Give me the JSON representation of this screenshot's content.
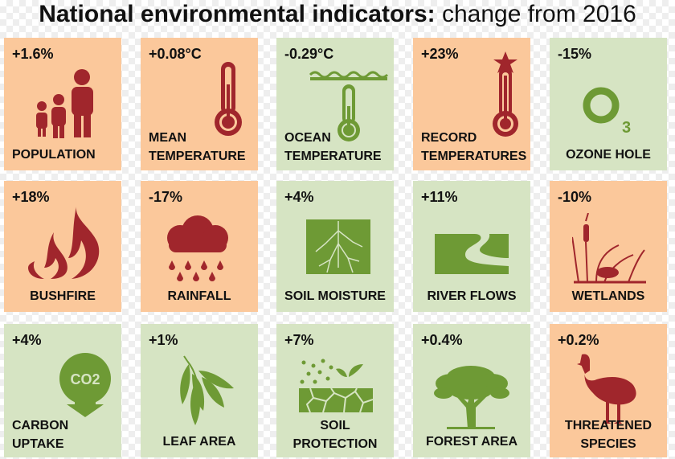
{
  "header": {
    "title_bold": "National environmental indicators:",
    "title_rest": " change from 2016"
  },
  "colors": {
    "orange_tile": "#fbc89b",
    "green_tile": "#d6e4c3",
    "red_icon": "#a0262c",
    "green_icon": "#6e9a35"
  },
  "tiles": [
    {
      "value": "+1.6%",
      "label": "POPULATION",
      "icon": "people-icon"
    },
    {
      "value": "+0.08°C",
      "label_line1": "MEAN",
      "label_line2": "TEMPERATURE",
      "icon": "thermometer-icon"
    },
    {
      "value": "-0.29°C",
      "label_line1": "OCEAN",
      "label_line2": "TEMPERATURE",
      "icon": "ocean-thermometer-icon"
    },
    {
      "value": "+23%",
      "label_line1": "RECORD",
      "label_line2": "TEMPERATURES",
      "icon": "record-thermometer-icon"
    },
    {
      "value": "-15%",
      "label": "OZONE HOLE",
      "icon": "ozone-icon"
    },
    {
      "value": "+18%",
      "label": "BUSHFIRE",
      "icon": "fire-icon"
    },
    {
      "value": "-17%",
      "label": "RAINFALL",
      "icon": "rain-cloud-icon"
    },
    {
      "value": "+4%",
      "label": "SOIL MOISTURE",
      "icon": "soil-roots-icon"
    },
    {
      "value": "+11%",
      "label": "RIVER FLOWS",
      "icon": "river-icon"
    },
    {
      "value": "-10%",
      "label": "WETLANDS",
      "icon": "wetlands-icon"
    },
    {
      "value": "+4%",
      "label_line1": "CARBON",
      "label_line2": "UPTAKE",
      "icon": "co2-icon",
      "icon_text": "CO2"
    },
    {
      "value": "+1%",
      "label": "LEAF AREA",
      "icon": "leaves-icon"
    },
    {
      "value": "+7%",
      "label_line1": "SOIL",
      "label_line2": "PROTECTION",
      "icon": "soil-protection-icon"
    },
    {
      "value": "+0.4%",
      "label": "FOREST AREA",
      "icon": "tree-icon"
    },
    {
      "value": "+0.2%",
      "label_line1": "THREATENED",
      "label_line2": "SPECIES",
      "icon": "cassowary-icon"
    }
  ]
}
